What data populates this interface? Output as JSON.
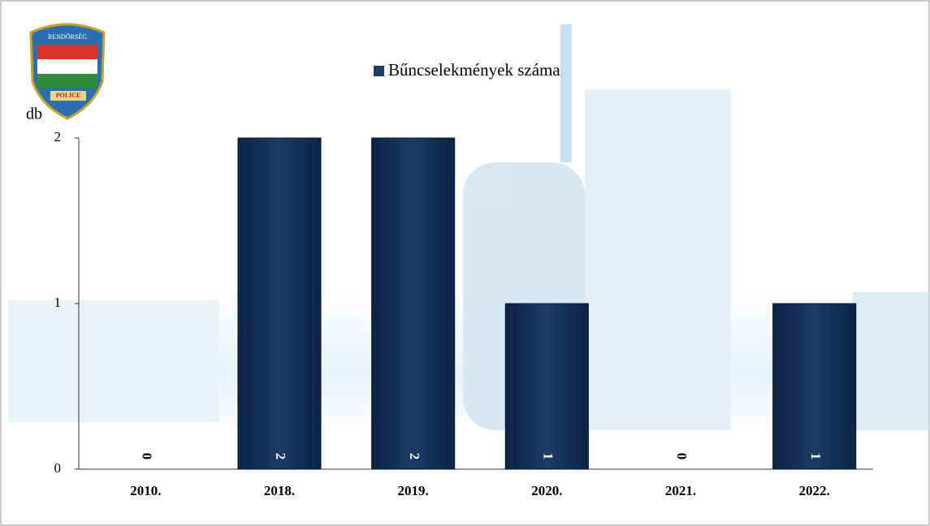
{
  "logo": {
    "top": "RENDŐRSÉG",
    "bottom": "POLICE"
  },
  "chart_data": {
    "type": "bar",
    "y_label": "db",
    "categories": [
      "2010.",
      "2018.",
      "2019.",
      "2020.",
      "2021.",
      "2022."
    ],
    "series": [
      {
        "name": "Bűncselekmények száma",
        "color": "#1f3a68",
        "values": [
          0,
          2,
          2,
          1,
          0,
          1
        ]
      }
    ],
    "ylim": [
      0,
      2
    ],
    "yticks": [
      0,
      1,
      2
    ],
    "data_labels": true
  }
}
